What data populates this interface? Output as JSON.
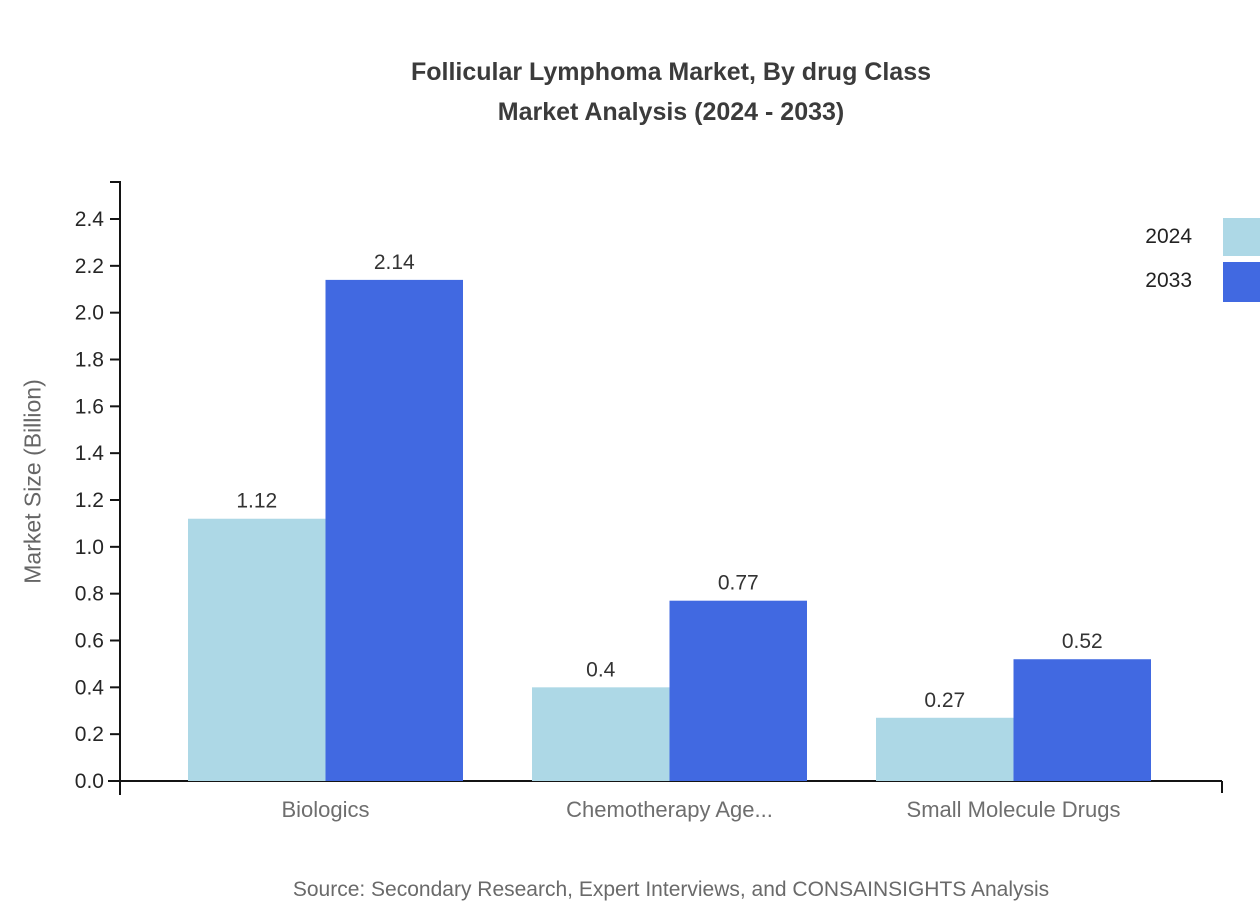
{
  "title": {
    "line1": "Follicular Lymphoma Market, By drug Class",
    "line2": "Market Analysis (2024 - 2033)"
  },
  "source_note": "Source: Secondary Research, Expert Interviews, and CONSAINSIGHTS Analysis",
  "legend": {
    "position": "right",
    "items": [
      {
        "label": "2024",
        "color": "#ADD8E6"
      },
      {
        "label": "2033",
        "color": "#4169E1"
      }
    ]
  },
  "colors": {
    "series_2024": "#ADD8E6",
    "series_2033": "#4169E1",
    "axis": "#141414",
    "tick_label": "#262626",
    "category_label": "#6e6e6e",
    "value_label": "#333333",
    "title": "#3b3b3b",
    "muted_text": "#666666"
  },
  "chart_data": {
    "type": "bar",
    "title": "Follicular Lymphoma Market, By drug Class Market Analysis (2024 - 2033)",
    "categories": [
      "Biologics",
      "Chemotherapy Age...",
      "Small Molecule Drugs"
    ],
    "series": [
      {
        "name": "2024",
        "color": "#ADD8E6",
        "values": [
          1.12,
          0.4,
          0.27
        ]
      },
      {
        "name": "2033",
        "color": "#4169E1",
        "values": [
          2.14,
          0.77,
          0.52
        ]
      }
    ],
    "value_labels": [
      "1.12",
      "2.14",
      "0.4",
      "0.77",
      "0.27",
      "0.52"
    ],
    "xlabel": "",
    "ylabel": "Market Size (Billion)",
    "ylim": [
      0,
      2.4
    ],
    "ytick_step": 0.2,
    "ytick_labels": [
      "0.0",
      "0.2",
      "0.4",
      "0.6",
      "0.8",
      "1.0",
      "1.2",
      "1.4",
      "1.6",
      "1.8",
      "2.0",
      "2.2",
      "2.4"
    ],
    "grid": false,
    "legend_position": "right"
  }
}
